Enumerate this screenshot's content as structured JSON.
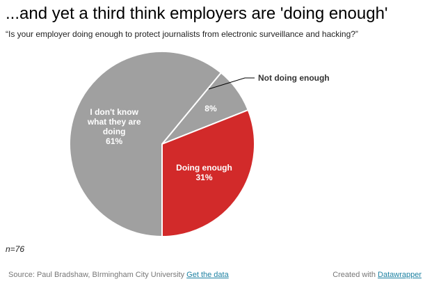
{
  "chart_data": {
    "type": "pie",
    "title": "...and yet a third think employers are 'doing enough'",
    "subtitle": "“Is your employer doing enough to protect journalists from electronic surveillance and hacking?”",
    "slices": [
      {
        "label": "Not doing enough",
        "value": 8,
        "value_label": "8%",
        "color": "#a0a0a0",
        "label_outside": true
      },
      {
        "label": "Doing enough",
        "value": 31,
        "value_label": "31%",
        "color": "#d22a2a",
        "label_outside": false
      },
      {
        "label": "I don't know what they are doing",
        "label_lines": [
          "I don't know",
          "what they are",
          "doing"
        ],
        "value": 61,
        "value_label": "61%",
        "color": "#a0a0a0",
        "label_outside": false
      }
    ],
    "start_angle_deg": 39.6,
    "direction": "clockwise"
  },
  "note": "n=76",
  "footer": {
    "source": "Source: Paul Bradshaw, BIrmingham City University",
    "get_data": "Get the data",
    "created_with": "Created with",
    "datawrapper": "Datawrapper"
  }
}
